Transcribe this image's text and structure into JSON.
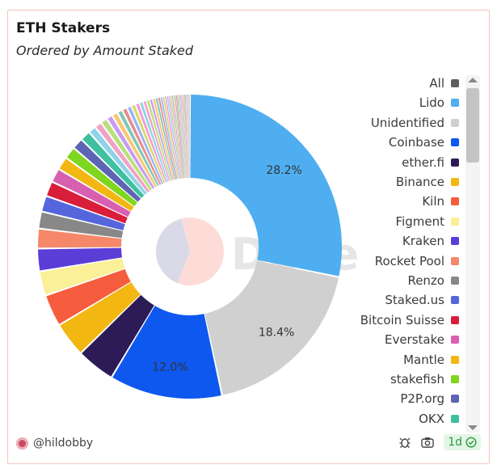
{
  "header": {
    "title": "ETH Stakers",
    "subtitle": "Ordered by Amount Staked"
  },
  "watermark": "Dune",
  "legend": [
    {
      "label": "All",
      "color": "#5e5e5e"
    },
    {
      "label": "Lido",
      "color": "#4eaef0"
    },
    {
      "label": "Unidentified",
      "color": "#d0d0d0"
    },
    {
      "label": "Coinbase",
      "color": "#0e58f0"
    },
    {
      "label": "ether.fi",
      "color": "#2d1b57"
    },
    {
      "label": "Binance",
      "color": "#f3b712"
    },
    {
      "label": "Kiln",
      "color": "#f55d3e"
    },
    {
      "label": "Figment",
      "color": "#fbef97"
    },
    {
      "label": "Kraken",
      "color": "#5b3ed8"
    },
    {
      "label": "Rocket Pool",
      "color": "#f58869"
    },
    {
      "label": "Renzo",
      "color": "#888888"
    },
    {
      "label": "Staked.us",
      "color": "#5566dd"
    },
    {
      "label": "Bitcoin Suisse",
      "color": "#d81e3a"
    },
    {
      "label": "Everstake",
      "color": "#d860b0"
    },
    {
      "label": "Mantle",
      "color": "#f3b712"
    },
    {
      "label": "stakefish",
      "color": "#7fd61e"
    },
    {
      "label": "P2P.org",
      "color": "#5d64b3"
    },
    {
      "label": "OKX",
      "color": "#3fc0a0"
    }
  ],
  "chart_data": {
    "type": "pie",
    "donut": true,
    "title": "ETH Stakers",
    "subtitle": "Ordered by Amount Staked",
    "slices": [
      {
        "label": "Lido",
        "value": 28.2,
        "color": "#4eaef0",
        "data_label": "28.2%"
      },
      {
        "label": "Unidentified",
        "value": 18.4,
        "color": "#d0d0d0",
        "data_label": "18.4%"
      },
      {
        "label": "Coinbase",
        "value": 12.0,
        "color": "#0e58f0",
        "data_label": "12.0%"
      },
      {
        "label": "ether.fi",
        "value": 4.1,
        "color": "#2d1b57"
      },
      {
        "label": "Binance",
        "value": 3.7,
        "color": "#f3b712"
      },
      {
        "label": "Kiln",
        "value": 3.4,
        "color": "#f55d3e"
      },
      {
        "label": "Figment",
        "value": 2.6,
        "color": "#fbef97"
      },
      {
        "label": "Kraken",
        "value": 2.4,
        "color": "#5b3ed8"
      },
      {
        "label": "Rocket Pool",
        "value": 2.1,
        "color": "#f58869"
      },
      {
        "label": "Renzo",
        "value": 1.8,
        "color": "#888888"
      },
      {
        "label": "Staked.us",
        "value": 1.7,
        "color": "#5566dd"
      },
      {
        "label": "Bitcoin Suisse",
        "value": 1.6,
        "color": "#d81e3a"
      },
      {
        "label": "Everstake",
        "value": 1.5,
        "color": "#d860b0"
      },
      {
        "label": "Mantle",
        "value": 1.4,
        "color": "#f3b712"
      },
      {
        "label": "stakefish",
        "value": 1.3,
        "color": "#7fd61e"
      },
      {
        "label": "P2P.org",
        "value": 1.2,
        "color": "#5d64b3"
      },
      {
        "label": "OKX",
        "value": 1.1,
        "color": "#3fc0a0"
      }
    ],
    "other_slices": {
      "count": 50,
      "total": 11.5
    },
    "inner_pie": {
      "colors": [
        "#fddcd8",
        "#d9d9e8"
      ],
      "values": [
        0.6,
        0.4
      ]
    }
  },
  "footer": {
    "author": "@hildobby",
    "freshness": "1d",
    "icons": [
      "bug-icon",
      "camera-icon",
      "check-circle-icon"
    ]
  }
}
